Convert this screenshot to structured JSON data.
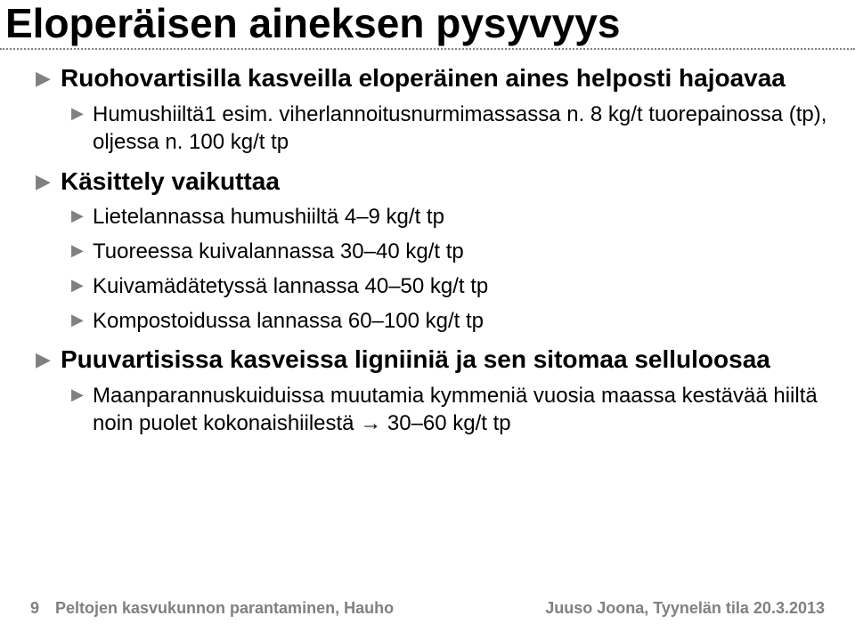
{
  "title": "Eloperäisen aineksen pysyvyys",
  "bullets": {
    "b1": {
      "prefix": "Ruohovartisilla kasveilla eloperäinen aines helposti hajoavaa",
      "line2a": "Humushiiltä",
      "sup": "1",
      "line2b": " esim. viherlannoitusnurmimassassa n. 8 kg/t tuorepainossa (tp), oljessa n. 100 kg/t tp"
    },
    "b2": "Käsittely vaikuttaa",
    "b2s": {
      "s1": "Lietelannassa humushiiltä 4–9 kg/t tp",
      "s2": "Tuoreessa kuivalannassa 30–40 kg/t tp",
      "s3": "Kuivamädätetyssä lannassa 40–50 kg/t tp",
      "s4": "Kompostoidussa lannassa 60–100 kg/t tp"
    },
    "b3": "Puuvartisissa kasveissa ligniiniä ja sen sitomaa selluloosaa",
    "b3s": {
      "s1": "Maanparannuskuiduissa muutamia kymmeniä vuosia maassa kestävää hiiltä noin puolet kokonaishiilestä → 30–60 kg/t tp"
    }
  },
  "footer": {
    "page": "9",
    "left": "Peltojen kasvukunnon parantaminen, Hauho",
    "right": "Juuso Joona, Tyynelän tila  20.3.2013"
  },
  "colors": {
    "bullet": "#808080",
    "text": "#000000",
    "footer": "#808080"
  }
}
